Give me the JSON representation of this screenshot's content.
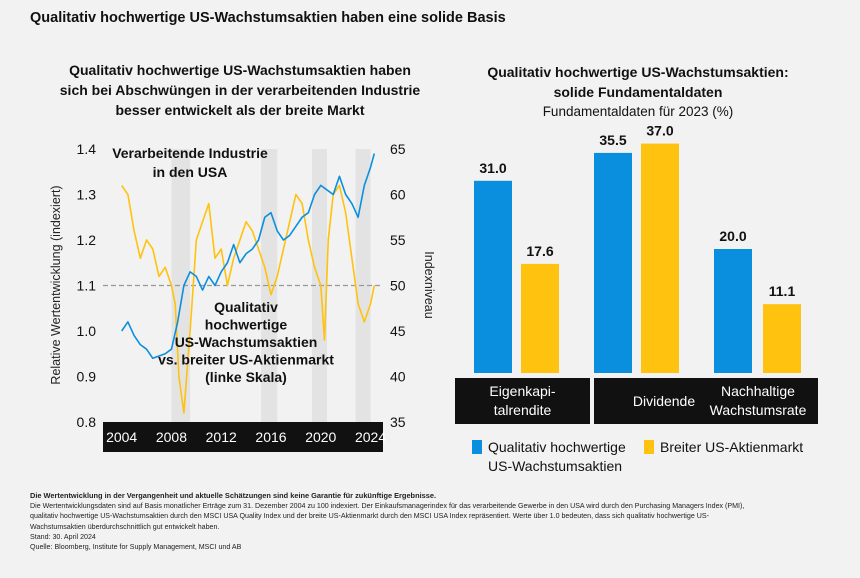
{
  "page_title": "Qualitativ hochwertige US-Wachstumsaktien haben eine solide Basis",
  "colors": {
    "blue": "#0a8fde",
    "yellow": "#ffc20e",
    "grey_band": "#e3e3e3",
    "black": "#111111"
  },
  "left_chart": {
    "title_lines": [
      "Qualitativ hochwertige US-Wachstumsaktien haben",
      "sich bei Abschwüngen in der verarbeitenden Industrie",
      "besser entwickelt als der breite Markt"
    ],
    "annotation_ism_lines": [
      "Verarbeitende Industrie",
      "in den USA"
    ],
    "annotation_quality_lines": [
      "Qualitativ",
      "hochwertige",
      "US-Wachstumsaktien",
      "vs. breiter US-Aktienmarkt",
      "(linke Skala)"
    ],
    "y_left_label": "Relative Wertentwicklung (indexiert)",
    "y_right_label": "Indexniveau",
    "y_left_ticks": [
      "1.4",
      "1.3",
      "1.2",
      "1.1",
      "1.0",
      "0.9",
      "0.8"
    ],
    "y_right_ticks": [
      "65",
      "60",
      "55",
      "50",
      "45",
      "40",
      "35"
    ],
    "x_ticks": [
      "2004",
      "2008",
      "2012",
      "2016",
      "2020",
      "2024"
    ]
  },
  "chart_data": [
    {
      "type": "line",
      "title": "Qualitativ hochwertige US-Wachstumsaktien haben sich bei Abschwüngen in der verarbeitenden Industrie besser entwickelt als der breite Markt",
      "xlabel": "",
      "ylabel": "Relative Wertentwicklung (indexiert)",
      "ylabel_right": "Indexniveau",
      "ylim": [
        0.8,
        1.4
      ],
      "ylim_right": [
        35,
        65
      ],
      "reference_line": 1.1,
      "recession_shading": [
        [
          2008,
          2009.5
        ],
        [
          2015.2,
          2016.5
        ],
        [
          2019.3,
          2020.5
        ],
        [
          2022.8,
          2024
        ]
      ],
      "series": [
        {
          "name": "Qualitativ hochwertige US-Wachstumsaktien vs. breiter US-Aktienmarkt",
          "axis": "left",
          "x": [
            2004.0,
            2004.5,
            2005.0,
            2005.5,
            2006.0,
            2006.5,
            2007.0,
            2007.5,
            2008.0,
            2008.5,
            2009.0,
            2009.5,
            2010.0,
            2010.5,
            2011.0,
            2011.5,
            2012.0,
            2012.5,
            2013.0,
            2013.5,
            2014.0,
            2014.5,
            2015.0,
            2015.5,
            2016.0,
            2016.5,
            2017.0,
            2017.5,
            2018.0,
            2018.5,
            2019.0,
            2019.5,
            2020.0,
            2020.5,
            2021.0,
            2021.5,
            2022.0,
            2022.5,
            2023.0,
            2023.5,
            2024.0,
            2024.3
          ],
          "values": [
            1.0,
            1.02,
            0.99,
            0.97,
            0.96,
            0.94,
            0.945,
            0.95,
            0.96,
            1.02,
            1.1,
            1.13,
            1.12,
            1.09,
            1.12,
            1.1,
            1.13,
            1.15,
            1.19,
            1.15,
            1.17,
            1.18,
            1.2,
            1.25,
            1.26,
            1.22,
            1.2,
            1.21,
            1.23,
            1.25,
            1.26,
            1.3,
            1.32,
            1.31,
            1.3,
            1.34,
            1.3,
            1.28,
            1.25,
            1.32,
            1.36,
            1.39
          ]
        },
        {
          "name": "Verarbeitende Industrie in den USA",
          "axis": "right",
          "x": [
            2004.0,
            2004.5,
            2005.0,
            2005.5,
            2006.0,
            2006.5,
            2007.0,
            2007.5,
            2008.0,
            2008.3,
            2008.6,
            2009.0,
            2009.5,
            2010.0,
            2010.5,
            2011.0,
            2011.5,
            2012.0,
            2012.5,
            2013.0,
            2013.5,
            2014.0,
            2014.5,
            2015.0,
            2015.5,
            2016.0,
            2016.5,
            2017.0,
            2017.5,
            2018.0,
            2018.5,
            2019.0,
            2019.5,
            2020.0,
            2020.3,
            2020.6,
            2021.0,
            2021.5,
            2022.0,
            2022.5,
            2023.0,
            2023.5,
            2024.0,
            2024.3
          ],
          "values": [
            61,
            60,
            56,
            53,
            55,
            54,
            51,
            52,
            50,
            48,
            40,
            36,
            45,
            55,
            57,
            59,
            53,
            54,
            50,
            53,
            55,
            57,
            56,
            54,
            52,
            49,
            51,
            54,
            57,
            60,
            59,
            55,
            52,
            50,
            44,
            55,
            60,
            61,
            58,
            53,
            48,
            46,
            48,
            50
          ]
        }
      ]
    },
    {
      "type": "bar",
      "title": "Qualitativ hochwertige US-Wachstumsaktien: solide Fundamentaldaten",
      "subtitle": "Fundamentaldaten für 2023 (%)",
      "categories": [
        "Eigenkapi-\ntalrendite",
        "Dividende",
        "Nachhaltige\nWachstumsrate"
      ],
      "ylim": [
        0,
        40
      ],
      "series": [
        {
          "name": "Qualitativ hochwertige US-Wachstumsaktien",
          "values": [
            31.0,
            35.5,
            20.0
          ]
        },
        {
          "name": "Breiter US-Aktienmarkt",
          "values": [
            17.6,
            37.0,
            11.1
          ]
        }
      ]
    }
  ],
  "right_chart": {
    "title_line1": "Qualitativ hochwertige US-Wachstumsaktien:",
    "title_line2": "solide Fundamentaldaten",
    "subtitle": "Fundamentaldaten für 2023 (%)",
    "category_lines": [
      [
        "Eigenkapi-",
        "talrendite"
      ],
      [
        "Dividende"
      ],
      [
        "Nachhaltige",
        "Wachstumsrate"
      ]
    ],
    "value_labels": [
      [
        "31.0",
        "17.6"
      ],
      [
        "35.5",
        "37.0"
      ],
      [
        "20.0",
        "11.1"
      ]
    ],
    "legend": {
      "blue_lines": [
        "Qualitativ hochwertige",
        "US-Wachstumsaktien"
      ],
      "yellow": "Breiter US-Aktienmarkt"
    }
  },
  "footnote": {
    "bold": "Die Wertentwicklung in der Vergangenheit und aktuelle Schätzungen sind keine Garantie für zukünftige Ergebnisse.",
    "lines": [
      "Die Wertentwicklungsdaten sind auf Basis monatlicher Erträge zum 31. Dezember 2004 zu 100 indexiert. Der Einkaufsmanagerindex für das verarbeitende Gewerbe in den USA wird durch den Purchasing Managers Index (PMI),",
      "qualitativ hochwertige US-Wachstumsaktien durch den MSCI USA Quality Index und der breite US-Aktienmarkt durch den MSCI USA Index repräsentiert. Werte über 1.0 bedeuten, dass sich qualitativ hochwertige US-",
      "Wachstumsaktien überdurchschnittlich gut entwickelt haben.",
      "Stand: 30. April 2024",
      "Quelle: Bloomberg, Institute for Supply Management, MSCI und AB"
    ]
  }
}
